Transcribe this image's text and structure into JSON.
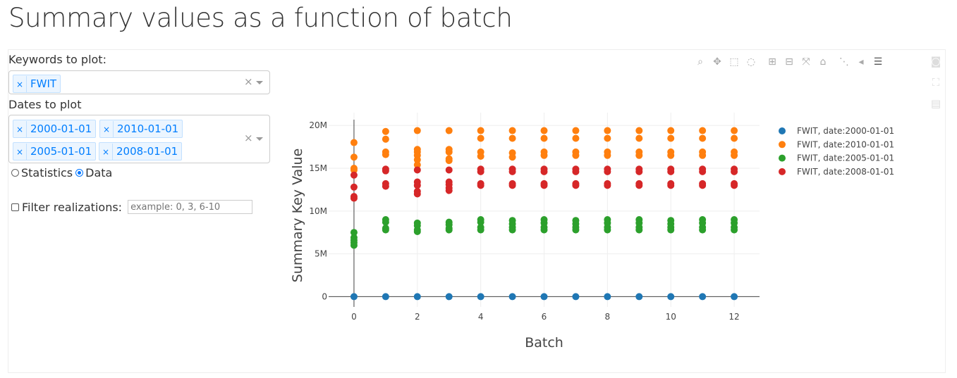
{
  "page": {
    "title": "Summary values as a function of batch"
  },
  "controls": {
    "keywords_label": "Keywords to plot:",
    "keywords": [
      "FWIT"
    ],
    "dates_label": "Dates to plot",
    "dates": [
      "2000-01-01",
      "2010-01-01",
      "2005-01-01",
      "2008-01-01"
    ],
    "clear_symbol": "×",
    "remove_symbol": "×",
    "radio_statistics": "Statistics",
    "radio_data": "Data",
    "radio_selected": "Data",
    "filter_label": "Filter realizations:",
    "filter_placeholder": "example: 0, 3, 6-10",
    "filter_checked": false
  },
  "modebar": {
    "icons": [
      "zoom-icon",
      "pan-icon",
      "box-select-icon",
      "lasso-select-icon",
      "zoom-in-icon",
      "zoom-out-icon",
      "autoscale-icon",
      "reset-axes-icon",
      "spike-lines-icon",
      "hover-closest-icon",
      "hover-compare-icon"
    ],
    "side_icons": [
      "camera-icon",
      "fullscreen-icon",
      "download-icon"
    ]
  },
  "chart_data": {
    "type": "scatter",
    "xlabel": "Batch",
    "ylabel": "Summary Key Value",
    "xlim": [
      -0.8,
      12.8
    ],
    "ylim": [
      -1200000,
      21500000
    ],
    "xticks": [
      0,
      2,
      4,
      6,
      8,
      10,
      12
    ],
    "yticks": [
      0,
      5000000,
      10000000,
      15000000,
      20000000
    ],
    "ytick_labels": [
      "0",
      "5M",
      "10M",
      "15M",
      "20M"
    ],
    "grid": true,
    "legend_placement": "top-right",
    "series": [
      {
        "name": "FWIT, date:2000-01-01",
        "color": "#1f77b4",
        "x": [
          0,
          1,
          2,
          3,
          4,
          5,
          6,
          7,
          8,
          9,
          10,
          11,
          12
        ],
        "y": [
          0,
          0,
          0,
          0,
          0,
          0,
          0,
          0,
          0,
          0,
          0,
          0,
          0
        ]
      },
      {
        "name": "FWIT, date:2010-01-01",
        "color": "#ff7f0e",
        "x": [
          0,
          0,
          0,
          0,
          1,
          1,
          1,
          1,
          2,
          2,
          2,
          2,
          2,
          2,
          3,
          3,
          3,
          3,
          3,
          4,
          4,
          4,
          4,
          5,
          5,
          5,
          5,
          6,
          6,
          6,
          6,
          7,
          7,
          7,
          7,
          8,
          8,
          8,
          8,
          9,
          9,
          9,
          9,
          10,
          10,
          10,
          10,
          11,
          11,
          11,
          11,
          12,
          12,
          12,
          12
        ],
        "y": [
          18000000,
          16300000,
          15000000,
          14800000,
          19300000,
          18400000,
          16900000,
          16600000,
          19400000,
          17200000,
          16900000,
          16500000,
          16000000,
          15400000,
          19400000,
          17200000,
          16900000,
          16100000,
          15900000,
          19400000,
          18500000,
          16900000,
          16400000,
          19400000,
          18500000,
          16800000,
          16300000,
          19400000,
          18500000,
          16900000,
          16500000,
          19400000,
          18500000,
          16900000,
          16500000,
          19400000,
          18500000,
          16900000,
          16500000,
          19400000,
          18500000,
          16900000,
          16500000,
          19400000,
          18500000,
          16900000,
          16500000,
          19400000,
          18500000,
          16900000,
          16500000,
          19400000,
          18500000,
          16900000,
          16500000
        ]
      },
      {
        "name": "FWIT, date:2005-01-01",
        "color": "#2ca02c",
        "x": [
          0,
          0,
          0,
          0,
          0,
          1,
          1,
          1,
          1,
          2,
          2,
          2,
          2,
          3,
          3,
          3,
          3,
          4,
          4,
          4,
          4,
          5,
          5,
          5,
          5,
          6,
          6,
          6,
          6,
          7,
          7,
          7,
          7,
          8,
          8,
          8,
          8,
          9,
          9,
          9,
          9,
          10,
          10,
          10,
          10,
          11,
          11,
          11,
          11,
          12,
          12,
          12,
          12
        ],
        "y": [
          7500000,
          6900000,
          6600000,
          6300000,
          6000000,
          9000000,
          8700000,
          8000000,
          7800000,
          8600000,
          8300000,
          7800000,
          7600000,
          8700000,
          8400000,
          8000000,
          7800000,
          9000000,
          8700000,
          8100000,
          7800000,
          8900000,
          8500000,
          8100000,
          7800000,
          9000000,
          8600000,
          8100000,
          7800000,
          8900000,
          8500000,
          8100000,
          7800000,
          9000000,
          8600000,
          8100000,
          7800000,
          9000000,
          8600000,
          8100000,
          7800000,
          8900000,
          8500000,
          8100000,
          7800000,
          9000000,
          8600000,
          8100000,
          7800000,
          9000000,
          8600000,
          8100000,
          7800000
        ]
      },
      {
        "name": "FWIT, date:2008-01-01",
        "color": "#d62728",
        "x": [
          0,
          0,
          0,
          0,
          1,
          1,
          1,
          1,
          2,
          2,
          2,
          2,
          2,
          3,
          3,
          3,
          3,
          3,
          4,
          4,
          4,
          4,
          5,
          5,
          5,
          5,
          6,
          6,
          6,
          6,
          7,
          7,
          7,
          7,
          8,
          8,
          8,
          8,
          9,
          9,
          9,
          9,
          10,
          10,
          10,
          10,
          11,
          11,
          11,
          11,
          12,
          12,
          12,
          12
        ],
        "y": [
          14200000,
          12800000,
          11700000,
          11500000,
          14900000,
          14700000,
          13200000,
          12900000,
          14800000,
          13400000,
          13000000,
          12300000,
          12000000,
          14800000,
          13400000,
          13100000,
          12700000,
          12400000,
          14900000,
          14600000,
          13200000,
          13000000,
          14900000,
          14600000,
          13200000,
          13000000,
          14900000,
          14600000,
          13200000,
          13000000,
          14900000,
          14600000,
          13200000,
          13000000,
          14900000,
          14600000,
          13200000,
          13000000,
          14900000,
          14600000,
          13200000,
          13000000,
          14900000,
          14600000,
          13200000,
          13000000,
          14900000,
          14600000,
          13200000,
          13000000,
          14900000,
          14600000,
          13200000,
          13000000
        ]
      }
    ]
  }
}
